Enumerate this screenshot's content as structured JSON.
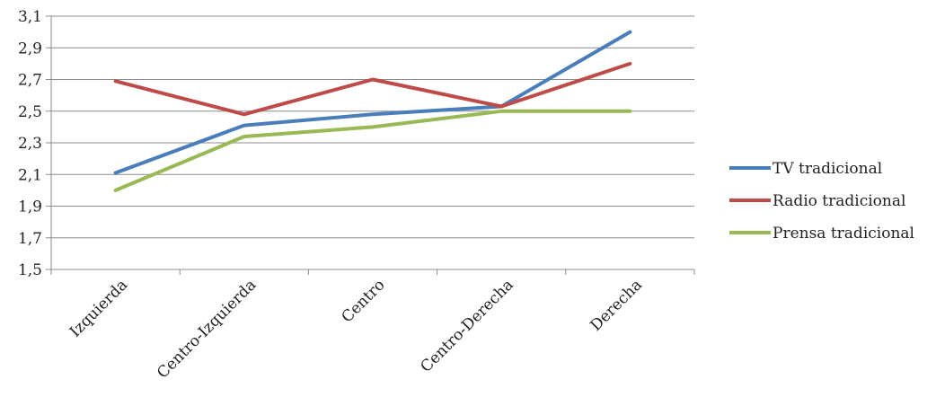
{
  "chart_data": {
    "type": "line",
    "title": "",
    "xlabel": "",
    "ylabel": "",
    "categories": [
      "Izquierda",
      "Centro-Izquierda",
      "Centro",
      "Centro-Derecha",
      "Derecha"
    ],
    "ylim": [
      1.5,
      3.1
    ],
    "yticks": [
      "1,5",
      "1,7",
      "1,9",
      "2,1",
      "2,3",
      "2,5",
      "2,7",
      "2,9",
      "3,1"
    ],
    "grid": true,
    "legend_position": "right",
    "series": [
      {
        "name": "TV tradicional",
        "color": "#4a7ebb",
        "values": [
          2.11,
          2.41,
          2.48,
          2.53,
          3.0
        ]
      },
      {
        "name": "Radio tradicional",
        "color": "#be4b48",
        "values": [
          2.69,
          2.48,
          2.7,
          2.53,
          2.8
        ]
      },
      {
        "name": "Prensa tradicional",
        "color": "#98b954",
        "values": [
          2.0,
          2.34,
          2.4,
          2.5,
          2.5
        ]
      }
    ]
  }
}
